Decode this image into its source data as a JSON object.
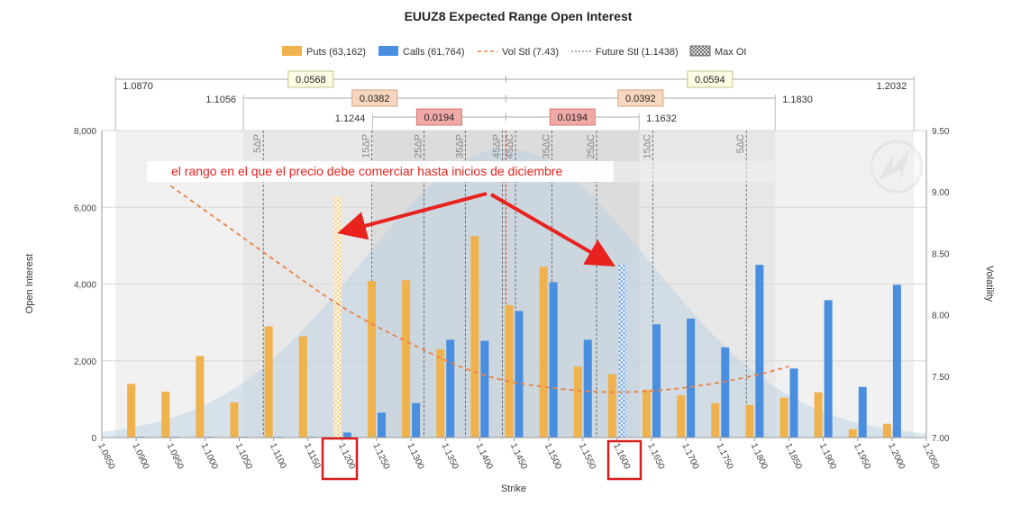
{
  "chart_data": {
    "type": "bar",
    "title": "EUUZ8 Expected Range Open Interest",
    "xlabel": "Strike",
    "ylabel": "Open Interest",
    "y2label": "Volatility",
    "x": [
      1.09,
      1.095,
      1.1,
      1.105,
      1.11,
      1.115,
      1.12,
      1.125,
      1.13,
      1.135,
      1.14,
      1.145,
      1.15,
      1.155,
      1.16,
      1.165,
      1.17,
      1.175,
      1.18,
      1.185,
      1.19,
      1.195,
      1.2
    ],
    "xlim": [
      1.085,
      1.205
    ],
    "xticks": [
      "1.0850",
      "1.0900",
      "1.0950",
      "1.1000",
      "1.1050",
      "1.1100",
      "1.1150",
      "1.1200",
      "1.1250",
      "1.1300",
      "1.1350",
      "1.1400",
      "1.1450",
      "1.1500",
      "1.1550",
      "1.1600",
      "1.1650",
      "1.1700",
      "1.1750",
      "1.1800",
      "1.1850",
      "1.1900",
      "1.1950",
      "1.2000",
      "1.2050"
    ],
    "ylim": [
      0,
      8000
    ],
    "yticks": [
      "0",
      "2,000",
      "4,000",
      "6,000",
      "8,000"
    ],
    "y2lim": [
      7.0,
      9.5
    ],
    "y2ticks": [
      "7.00",
      "7.50",
      "8.00",
      "8.50",
      "9.00",
      "9.50"
    ],
    "series": [
      {
        "name": "Puts (63,162)",
        "color": "#f0b24d",
        "values": [
          1400,
          1200,
          2120,
          920,
          2900,
          2640,
          6280,
          4080,
          4100,
          2300,
          5250,
          3450,
          4450,
          1850,
          1650,
          1250,
          1100,
          900,
          850,
          1040,
          1180,
          220,
          360
        ]
      },
      {
        "name": "Calls (61,764)",
        "color": "#4a8ee0",
        "values": [
          20,
          20,
          20,
          20,
          20,
          20,
          130,
          650,
          900,
          2550,
          2520,
          3300,
          4050,
          2550,
          4510,
          2950,
          3100,
          2350,
          4500,
          1800,
          3580,
          1320,
          3980
        ]
      }
    ],
    "vol_settle": {
      "name": "Vol Stl (7.43)",
      "color": "#e8834a",
      "points": [
        [
          1.095,
          9.05
        ],
        [
          1.11,
          8.45
        ],
        [
          1.12,
          8.05
        ],
        [
          1.13,
          7.76
        ],
        [
          1.14,
          7.5
        ],
        [
          1.15,
          7.4
        ],
        [
          1.16,
          7.36
        ],
        [
          1.17,
          7.4
        ],
        [
          1.18,
          7.5
        ],
        [
          1.185,
          7.58
        ]
      ]
    },
    "future_settle": {
      "name": "Future Stl (1.1438)",
      "value": 1.1438
    },
    "max_oi": {
      "name": "Max OI",
      "put_strike": 1.12,
      "call_strike": 1.16
    },
    "delta_lines": [
      {
        "label": "5ΔP",
        "strike": 1.1085
      },
      {
        "label": "15ΔP",
        "strike": 1.1243
      },
      {
        "label": "25ΔP",
        "strike": 1.1319
      },
      {
        "label": "35ΔP",
        "strike": 1.1379
      },
      {
        "label": "45ΔP",
        "strike": 1.1433
      },
      {
        "label": "45ΔC",
        "strike": 1.1452
      },
      {
        "label": "35ΔC",
        "strike": 1.1505
      },
      {
        "label": "25ΔC",
        "strike": 1.157
      },
      {
        "label": "15ΔC",
        "strike": 1.1652
      },
      {
        "label": "5ΔC",
        "strike": 1.1788
      }
    ],
    "ranges": [
      {
        "low": "1.0870",
        "high": "1.2032",
        "low_value": 1.087,
        "high_value": 1.2032,
        "put_width": "0.0568",
        "call_width": "0.0594"
      },
      {
        "low": "1.1056",
        "high": "1.1830",
        "low_value": 1.1056,
        "high_value": 1.183,
        "put_width": "0.0382",
        "call_width": "0.0392"
      },
      {
        "low": "1.1244",
        "high": "1.1632",
        "low_value": 1.1244,
        "high_value": 1.1632,
        "put_width": "0.0194",
        "call_width": "0.0194"
      }
    ],
    "annotation": "el rango en el que el precio debe comerciar hasta inicios de diciembre",
    "legend_position": "top-center",
    "grid": true
  }
}
